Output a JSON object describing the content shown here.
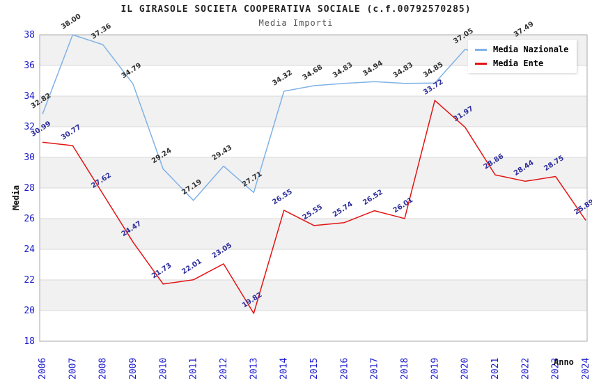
{
  "chart_data": {
    "type": "line",
    "title": "IL GIRASOLE SOCIETA COOPERATIVA SOCIALE (c.f.00792570285)",
    "subtitle": "Media Importi",
    "xlabel": "Anno",
    "ylabel": "Media",
    "x": [
      2006,
      2007,
      2008,
      2009,
      2010,
      2011,
      2012,
      2013,
      2014,
      2015,
      2016,
      2017,
      2018,
      2019,
      2020,
      2021,
      2022,
      2023,
      2024
    ],
    "ylim": [
      18,
      38
    ],
    "ytick_step": 2,
    "grid": "horizontal-bands-alternating",
    "legend_position": "top-right",
    "colors": {
      "tick_label": "#1a1acc",
      "band_gray": "#f1f1f1",
      "band_white": "#ffffff",
      "grid_line": "#d9d9d9",
      "frame": "#aaaaaa",
      "title": "#222222",
      "subtitle": "#555555",
      "legend_bg": "#ffffff"
    },
    "series": [
      {
        "name": "Media Nazionale",
        "line_color": "#7fb2e6",
        "label_color": "#333333",
        "years": [
          2006,
          2007,
          2008,
          2009,
          2010,
          2011,
          2012,
          2013,
          2014,
          2015,
          2016,
          2017,
          2018,
          2019,
          2020,
          2021,
          2022
        ],
        "values": [
          32.82,
          38.0,
          37.36,
          34.79,
          29.24,
          27.19,
          29.43,
          27.71,
          34.32,
          34.68,
          34.83,
          34.94,
          34.83,
          34.85,
          37.05,
          36.5,
          37.49
        ],
        "labels": [
          "32.82",
          "38.00",
          "37.36",
          "34.79",
          "29.24",
          "27.19",
          "29.43",
          "27.71",
          "34.32",
          "34.68",
          "34.83",
          "34.94",
          "34.83",
          "34.85",
          "37.05",
          "",
          "37.49"
        ]
      },
      {
        "name": "Media Ente",
        "line_color": "#e31414",
        "label_color": "#2f2f9d",
        "years": [
          2006,
          2007,
          2008,
          2009,
          2010,
          2011,
          2012,
          2013,
          2014,
          2015,
          2016,
          2017,
          2018,
          2019,
          2020,
          2021,
          2022,
          2023,
          2024
        ],
        "values": [
          30.99,
          30.77,
          27.62,
          24.47,
          21.73,
          22.01,
          23.05,
          19.82,
          26.55,
          25.55,
          25.74,
          26.52,
          26.01,
          33.72,
          31.97,
          28.86,
          28.44,
          28.75,
          25.89
        ],
        "labels": [
          "30.99",
          "30.77",
          "27.62",
          "24.47",
          "21.73",
          "22.01",
          "23.05",
          "19.82",
          "26.55",
          "25.55",
          "25.74",
          "26.52",
          "26.01",
          "33.72",
          "31.97",
          "28.86",
          "28.44",
          "28.75",
          "25.89"
        ]
      }
    ]
  }
}
